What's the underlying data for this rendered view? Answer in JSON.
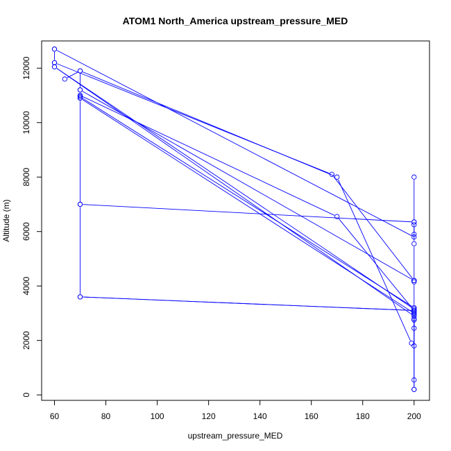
{
  "chart_data": {
    "type": "line",
    "title": "ATOM1 North_America upstream_pressure_MED",
    "xlabel": "upstream_pressure_MED",
    "ylabel": "Altitude (m)",
    "xlim": [
      55,
      206
    ],
    "ylim": [
      -200,
      13000
    ],
    "x_ticks": [
      60,
      80,
      100,
      120,
      140,
      160,
      180,
      200
    ],
    "y_ticks": [
      0,
      2000,
      4000,
      6000,
      8000,
      10000,
      12000
    ],
    "grid": false,
    "legend": "none",
    "color": "#0000ff",
    "marker": "open-circle",
    "series": [
      {
        "x": [
          60,
          60,
          60,
          200,
          200,
          200,
          200
        ],
        "y": [
          12700,
          12200,
          12050,
          3150,
          3000,
          2800,
          2450
        ]
      },
      {
        "x": [
          200,
          200,
          200,
          200,
          200,
          60
        ],
        "y": [
          8000,
          6350,
          6250,
          5900,
          5800,
          12700
        ]
      },
      {
        "x": [
          70,
          70,
          70,
          70,
          70,
          70,
          70,
          200,
          200,
          200
        ],
        "y": [
          11900,
          11200,
          11000,
          10950,
          10900,
          7000,
          3600,
          3100,
          2950,
          2750
        ]
      },
      {
        "x": [
          70,
          200,
          200,
          200
        ],
        "y": [
          7000,
          6350,
          5550,
          4200
        ]
      },
      {
        "x": [
          70,
          200,
          200
        ],
        "y": [
          3600,
          3100,
          3050
        ]
      },
      {
        "x": [
          60,
          168,
          200
        ],
        "y": [
          12200,
          8100,
          4200
        ]
      },
      {
        "x": [
          64,
          70,
          170,
          199
        ],
        "y": [
          11600,
          11900,
          8000,
          1900
        ]
      },
      {
        "x": [
          70,
          200,
          200,
          200,
          200
        ],
        "y": [
          11200,
          4200,
          4150,
          3200,
          1800
        ]
      },
      {
        "x": [
          70,
          170,
          200,
          200,
          200
        ],
        "y": [
          11000,
          6550,
          3100,
          550,
          200
        ]
      },
      {
        "x": [
          60,
          200,
          200
        ],
        "y": [
          12050,
          2900,
          200
        ]
      },
      {
        "x": [
          70,
          200
        ],
        "y": [
          10950,
          3200
        ]
      },
      {
        "x": [
          70,
          200
        ],
        "y": [
          10900,
          3000
        ]
      }
    ]
  }
}
